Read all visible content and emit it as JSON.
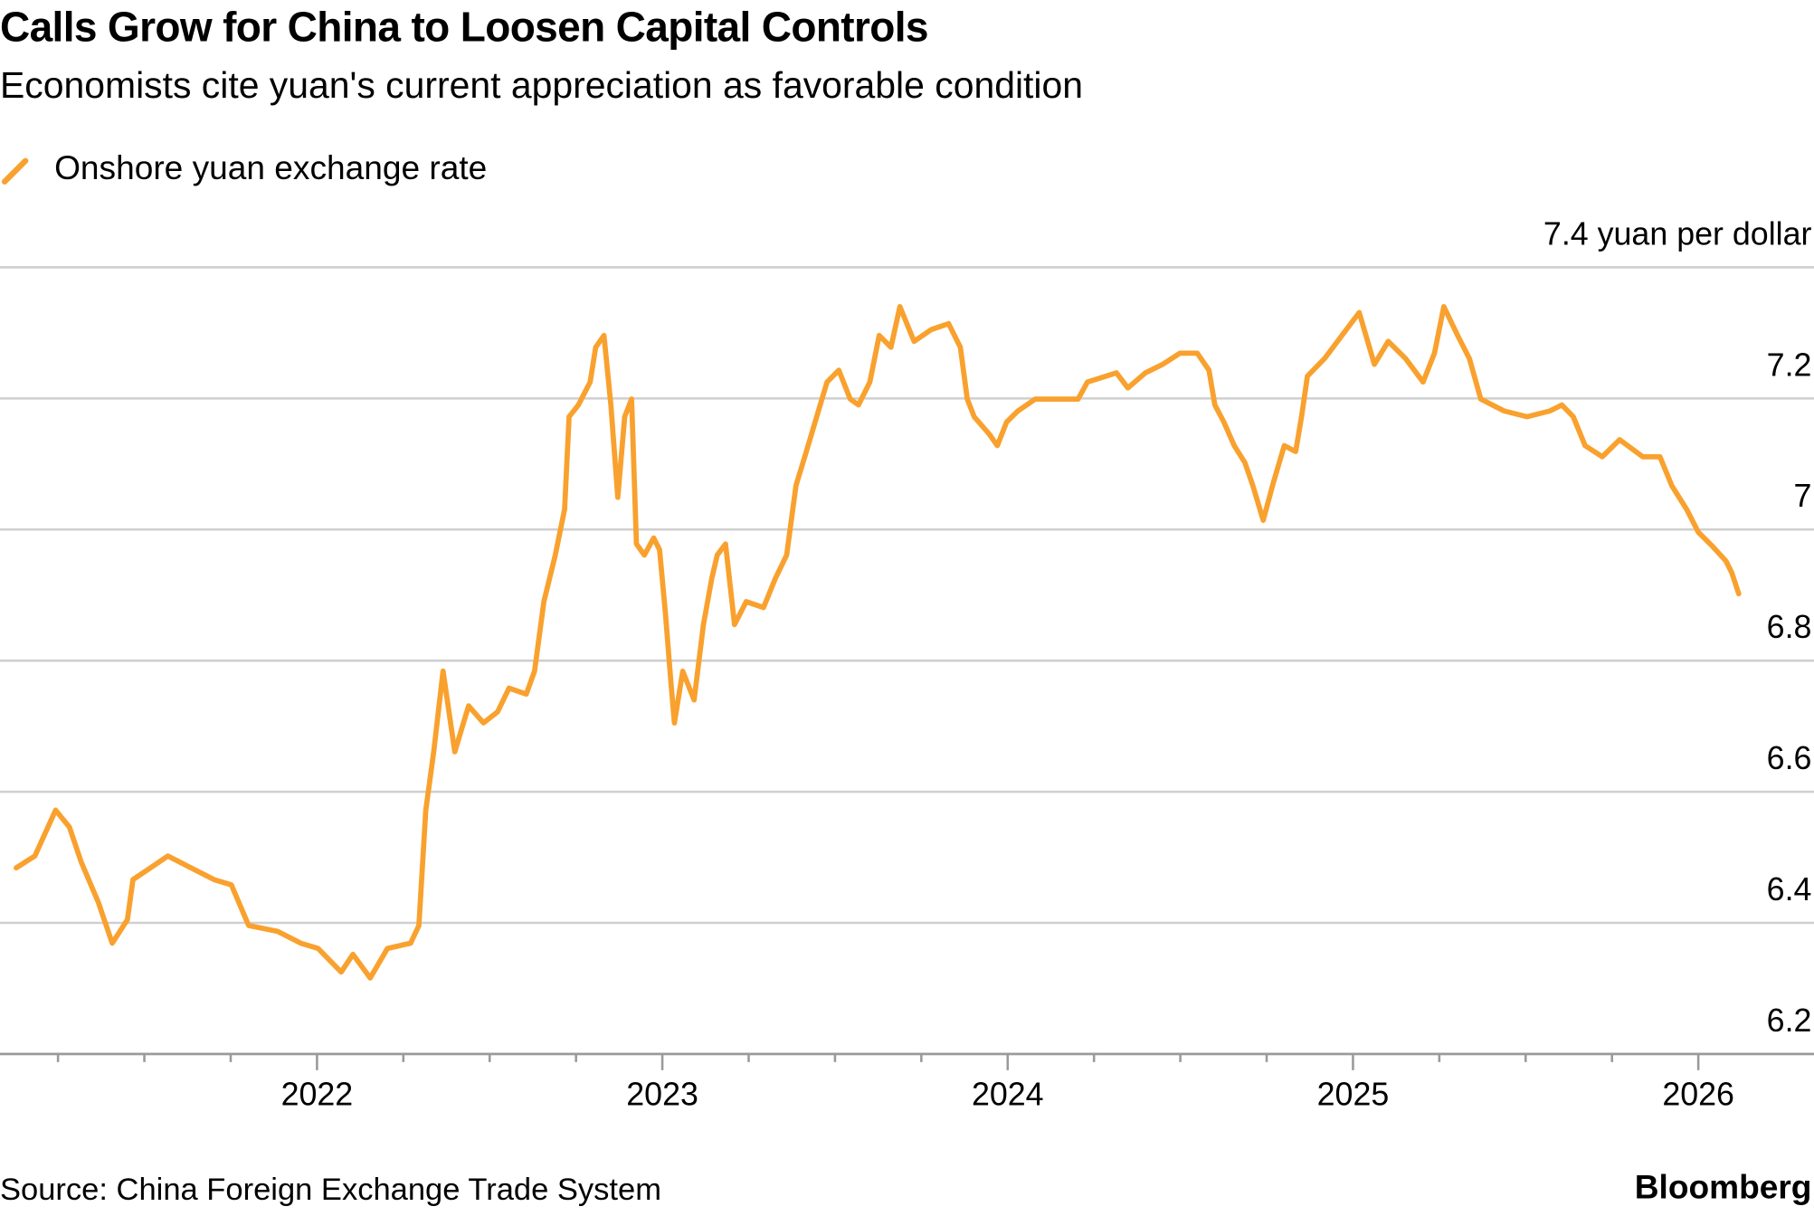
{
  "chart_data": {
    "type": "line",
    "title": "Calls Grow for China to Loosen Capital Controls",
    "subtitle": "Economists cite yuan's current appreciation as favorable condition",
    "source": "Source: China Foreign Exchange Trade System",
    "brand": "Bloomberg",
    "xlim": [
      2021.082,
      2026.335
    ],
    "xticks": [
      2022,
      2023,
      2024,
      2025,
      2026
    ],
    "xminorticks": [
      2021.25,
      2021.5,
      2021.75,
      2022.25,
      2022.5,
      2022.75,
      2023.25,
      2023.5,
      2023.75,
      2024.25,
      2024.5,
      2024.75,
      2025.25,
      2025.5,
      2025.75
    ],
    "ylim": [
      6.2,
      7.4
    ],
    "yticks": [
      6.2,
      6.4,
      6.6,
      6.8,
      7.0,
      7.2,
      {
        "value": 7.4,
        "label": "7.4 yuan per dollar"
      }
    ],
    "grid": true,
    "legend": "top-left",
    "x": [
      2021.129,
      2021.183,
      2021.243,
      2021.283,
      2021.317,
      2021.367,
      2021.407,
      2021.451,
      2021.467,
      2021.518,
      2021.568,
      2021.635,
      2021.702,
      2021.752,
      2021.802,
      2021.886,
      2021.953,
      2022.003,
      2022.07,
      2022.104,
      2022.154,
      2022.204,
      2022.271,
      2022.295,
      2022.315,
      2022.338,
      2022.365,
      2022.399,
      2022.439,
      2022.482,
      2022.523,
      2022.556,
      2022.606,
      2022.63,
      2022.657,
      2022.69,
      2022.717,
      2022.73,
      2022.757,
      2022.791,
      2022.807,
      2022.831,
      2022.851,
      2022.871,
      2022.891,
      2022.911,
      2022.925,
      2022.948,
      2022.975,
      2022.992,
      2023.009,
      2023.025,
      2023.035,
      2023.059,
      2023.092,
      2023.119,
      2023.143,
      2023.159,
      2023.183,
      2023.209,
      2023.243,
      2023.293,
      2023.327,
      2023.36,
      2023.387,
      2023.417,
      2023.447,
      2023.477,
      2023.511,
      2023.544,
      2023.568,
      2023.601,
      2023.628,
      2023.662,
      2023.688,
      2023.729,
      2023.779,
      2023.829,
      2023.863,
      2023.883,
      2023.903,
      2023.946,
      2023.97,
      2023.997,
      2024.03,
      2024.08,
      2024.147,
      2024.204,
      2024.231,
      2024.315,
      2024.348,
      2024.399,
      2024.449,
      2024.499,
      2024.549,
      2024.583,
      2024.6,
      2024.626,
      2024.656,
      2024.687,
      2024.71,
      2024.74,
      2024.767,
      2024.801,
      2024.834,
      2024.851,
      2024.868,
      2024.918,
      2024.968,
      2025.018,
      2025.062,
      2025.102,
      2025.152,
      2025.203,
      2025.236,
      2025.263,
      2025.303,
      2025.337,
      2025.37,
      2025.437,
      2025.504,
      2025.571,
      2025.605,
      2025.638,
      2025.672,
      2025.722,
      2025.772,
      2025.839,
      2025.889,
      2025.923,
      2025.966,
      2026.0,
      2026.04,
      2026.08,
      2026.097,
      2026.117
    ],
    "series": [
      {
        "name": "Onshore yuan exchange rate",
        "color": "#f9a12e",
        "values": [
          6.484,
          6.502,
          6.572,
          6.546,
          6.493,
          6.431,
          6.369,
          6.405,
          6.466,
          6.484,
          6.502,
          6.484,
          6.466,
          6.458,
          6.396,
          6.387,
          6.369,
          6.361,
          6.325,
          6.352,
          6.316,
          6.361,
          6.369,
          6.396,
          6.572,
          6.661,
          6.784,
          6.661,
          6.731,
          6.705,
          6.722,
          6.758,
          6.749,
          6.784,
          6.89,
          6.961,
          7.031,
          7.172,
          7.19,
          7.225,
          7.278,
          7.296,
          7.19,
          7.049,
          7.172,
          7.199,
          6.978,
          6.961,
          6.987,
          6.969,
          6.872,
          6.766,
          6.705,
          6.784,
          6.74,
          6.855,
          6.925,
          6.961,
          6.978,
          6.855,
          6.89,
          6.881,
          6.925,
          6.961,
          7.067,
          7.119,
          7.172,
          7.225,
          7.243,
          7.199,
          7.19,
          7.225,
          7.296,
          7.278,
          7.34,
          7.287,
          7.305,
          7.314,
          7.278,
          7.199,
          7.172,
          7.146,
          7.128,
          7.164,
          7.181,
          7.199,
          7.199,
          7.199,
          7.225,
          7.239,
          7.216,
          7.239,
          7.252,
          7.269,
          7.269,
          7.243,
          7.19,
          7.164,
          7.128,
          7.102,
          7.067,
          7.014,
          7.067,
          7.128,
          7.119,
          7.172,
          7.234,
          7.261,
          7.296,
          7.331,
          7.252,
          7.287,
          7.261,
          7.225,
          7.269,
          7.34,
          7.296,
          7.261,
          7.199,
          7.181,
          7.172,
          7.181,
          7.19,
          7.172,
          7.128,
          7.111,
          7.137,
          7.111,
          7.111,
          7.067,
          7.031,
          6.996,
          6.975,
          6.952,
          6.934,
          6.902
        ]
      }
    ]
  }
}
